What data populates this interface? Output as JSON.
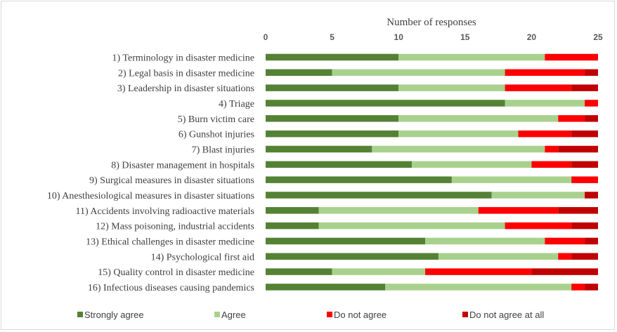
{
  "chart_data": {
    "type": "bar",
    "orientation": "horizontal",
    "stacked": true,
    "xlabel": "Number of responses",
    "xlim": [
      0,
      25
    ],
    "xticks": [
      0,
      5,
      10,
      15,
      20,
      25
    ],
    "grid": false,
    "legend_position": "bottom",
    "categories": [
      "1) Terminology in disaster medicine",
      "2) Legal basis in disaster medicine",
      "3) Leadership in disaster situations",
      "4) Triage",
      "5) Burn victim care",
      "6) Gunshot injuries",
      "7) Blast injuries",
      "8) Disaster management in hospitals",
      "9) Surgical measures in disaster situations",
      "10) Anesthesiological measures in disaster situations",
      "11) Accidents involving radioactive materials",
      "12) Mass poisoning, industrial accidents",
      "13) Ethical challenges in disaster medicine",
      "14) Psychological first aid",
      "15) Quality control in disaster medicine",
      "16) Infectious diseases causing pandemics"
    ],
    "series": [
      {
        "name": "Strongly agree",
        "color": "#548235",
        "values": [
          10,
          5,
          10,
          18,
          10,
          10,
          8,
          11,
          14,
          17,
          4,
          4,
          12,
          13,
          5,
          9
        ]
      },
      {
        "name": "Agree",
        "color": "#a9d18e",
        "values": [
          11,
          13,
          8,
          6,
          12,
          9,
          13,
          9,
          9,
          7,
          12,
          14,
          9,
          9,
          7,
          14
        ]
      },
      {
        "name": "Do not agree",
        "color": "#ff0000",
        "values": [
          4,
          6,
          5,
          1,
          2,
          4,
          1,
          3,
          2,
          0,
          6,
          5,
          3,
          1,
          8,
          1
        ]
      },
      {
        "name": "Do not agree at all",
        "color": "#c00000",
        "values": [
          0,
          1,
          2,
          0,
          1,
          2,
          3,
          2,
          0,
          1,
          3,
          2,
          1,
          2,
          5,
          1
        ]
      }
    ]
  }
}
